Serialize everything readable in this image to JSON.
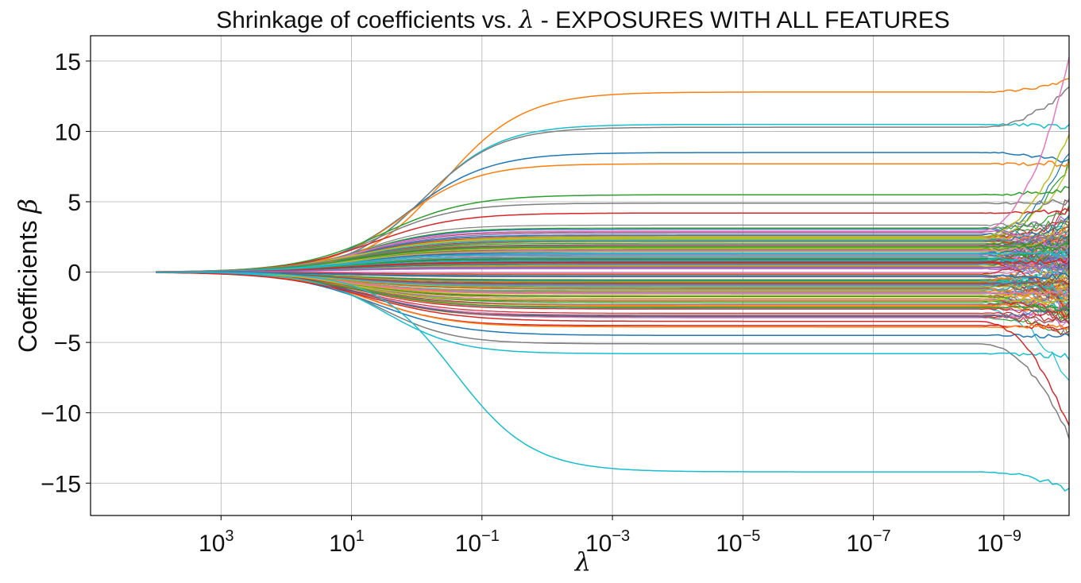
{
  "chart_data": {
    "type": "line",
    "title": "Shrinkage of coefficients vs. λ - EXPOSURES WITH ALL FEATURES",
    "title_parts": {
      "prefix": "Shrinkage of coefficients vs. ",
      "symbol": "λ",
      "suffix": " - EXPOSURES WITH ALL FEATURES"
    },
    "xlabel": "λ",
    "ylabel": "Coefficients β",
    "ylabel_parts": {
      "prefix": "Coefficients ",
      "symbol": "β"
    },
    "x_scale": "log",
    "x_reversed": true,
    "x_range": [
      100000.0,
      1e-10
    ],
    "x_ticks": [
      {
        "base": "10",
        "exp": "3",
        "value": 1000.0
      },
      {
        "base": "10",
        "exp": "1",
        "value": 10.0
      },
      {
        "base": "10",
        "exp": "−1",
        "value": 0.1
      },
      {
        "base": "10",
        "exp": "−3",
        "value": 0.001
      },
      {
        "base": "10",
        "exp": "−5",
        "value": 1e-05
      },
      {
        "base": "10",
        "exp": "−7",
        "value": 1e-07
      },
      {
        "base": "10",
        "exp": "−9",
        "value": 1e-09
      }
    ],
    "y_range": [
      -17.3,
      16.8
    ],
    "y_ticks": [
      {
        "label": "15",
        "value": 15
      },
      {
        "label": "10",
        "value": 10
      },
      {
        "label": "5",
        "value": 5
      },
      {
        "label": "0",
        "value": 0
      },
      {
        "label": "−5",
        "value": -5
      },
      {
        "label": "−10",
        "value": -10
      },
      {
        "label": "−15",
        "value": -15
      }
    ],
    "grid": true,
    "legend": "none",
    "lambda_start": 10000.0,
    "lambda_end": 1e-10,
    "palette": [
      "#1f77b4",
      "#ff7f0e",
      "#2ca02c",
      "#d62728",
      "#9467bd",
      "#8c564b",
      "#e377c2",
      "#7f7f7f",
      "#bcbd22",
      "#17becf"
    ],
    "series": [
      {
        "color": "#ff7f0e",
        "plateau": 12.8,
        "end": 13.6
      },
      {
        "color": "#17becf",
        "plateau": 10.5,
        "end": 10.3
      },
      {
        "color": "#7f7f7f",
        "plateau": 10.3,
        "end": 13.2
      },
      {
        "color": "#1f77b4",
        "plateau": 8.5,
        "end": 7.8
      },
      {
        "color": "#ff7f0e",
        "plateau": 7.7,
        "end": 7.7
      },
      {
        "color": "#2ca02c",
        "plateau": 5.5,
        "end": 5.9
      },
      {
        "color": "#7f7f7f",
        "plateau": 4.9,
        "end": 5.0
      },
      {
        "color": "#d62728",
        "plateau": 4.2,
        "end": 4.3
      },
      {
        "color": "#e377c2",
        "plateau": 2.9,
        "end": 15.2
      },
      {
        "color": "#bcbd22",
        "plateau": 2.5,
        "end": 10.0
      },
      {
        "color": "#7f7f7f",
        "plateau": 2.2,
        "end": 2.4
      },
      {
        "color": "#2ca02c",
        "plateau": 1.8,
        "end": 1.9
      },
      {
        "color": "#17becf",
        "plateau": 1.3,
        "end": 1.4
      },
      {
        "color": "#d62728",
        "plateau": 0.7,
        "end": 0.8
      },
      {
        "color": "#9467bd",
        "plateau": 0.3,
        "end": 0.4
      },
      {
        "color": "#1f77b4",
        "plateau": -0.3,
        "end": -0.3
      },
      {
        "color": "#8c564b",
        "plateau": -0.8,
        "end": -0.8
      },
      {
        "color": "#e377c2",
        "plateau": -1.5,
        "end": -1.5
      },
      {
        "color": "#bcbd22",
        "plateau": -2.0,
        "end": -2.1
      },
      {
        "color": "#2ca02c",
        "plateau": -2.5,
        "end": -2.6
      },
      {
        "color": "#d62728",
        "plateau": -3.8,
        "end": -4.0
      },
      {
        "color": "#ff7f0e",
        "plateau": -3.9,
        "end": -3.8
      },
      {
        "color": "#1f77b4",
        "plateau": -4.5,
        "end": -4.6
      },
      {
        "color": "#7f7f7f",
        "plateau": -5.1,
        "end": -11.8
      },
      {
        "color": "#17becf",
        "plateau": -5.8,
        "end": -6.0
      },
      {
        "color": "#d62728",
        "plateau": -3.5,
        "end": -11.0
      },
      {
        "color": "#17becf",
        "plateau": -14.2,
        "end": -15.5
      }
    ]
  }
}
